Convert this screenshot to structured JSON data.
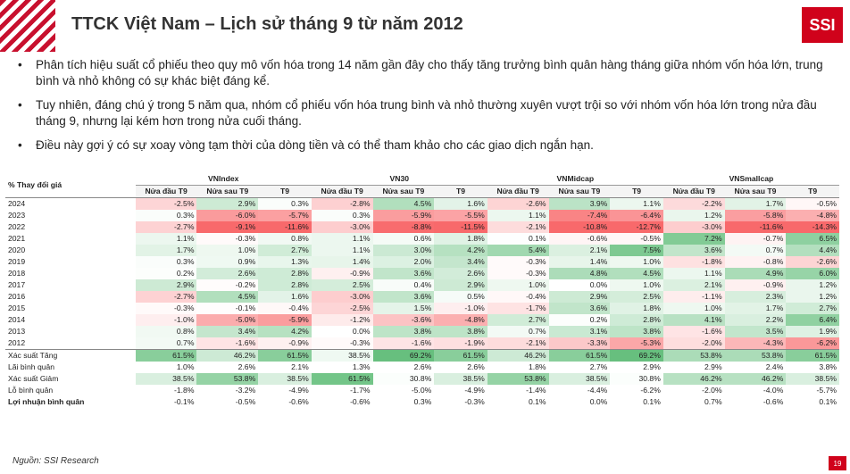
{
  "header": {
    "title": "TTCK Việt Nam – Lịch sử tháng 9 từ năm 2012",
    "logo": "SSI"
  },
  "bullets": [
    "Phân tích hiệu suất cổ phiếu theo quy mô vốn hóa trong 14 năm gần đây cho thấy tăng trưởng bình quân hàng tháng giữa nhóm vốn hóa lớn, trung bình và nhỏ không có sự khác biệt đáng kể.",
    "Tuy nhiên,  đáng chú ý trong 5 năm qua, nhóm cổ phiếu vốn hóa trung bình và nhỏ thường xuyên vượt trội so với nhóm vốn hóa lớn trong nửa đầu tháng 9, nhưng lại kém hơn trong nửa cuối tháng.",
    "Điều này gợi ý có sự xoay vòng tạm thời của dòng tiền và có thể tham khảo cho các giao dịch ngắn hạn."
  ],
  "table": {
    "corner": "% Thay đổi giá",
    "groups": [
      "VNIndex",
      "VN30",
      "VNMidcap",
      "VNSmallcap"
    ],
    "subcols": [
      "Nửa đầu T9",
      "Nửa sau T9",
      "T9"
    ],
    "rows": [
      {
        "label": "2024",
        "v": [
          "-2.5%",
          "2.9%",
          "0.3%",
          "-2.8%",
          "4.5%",
          "1.6%",
          "-2.6%",
          "3.9%",
          "1.1%",
          "-2.2%",
          "1.7%",
          "-0.5%"
        ]
      },
      {
        "label": "2023",
        "v": [
          "0.3%",
          "-6.0%",
          "-5.7%",
          "0.3%",
          "-5.9%",
          "-5.5%",
          "1.1%",
          "-7.4%",
          "-6.4%",
          "1.2%",
          "-5.8%",
          "-4.8%"
        ]
      },
      {
        "label": "2022",
        "v": [
          "-2.7%",
          "-9.1%",
          "-11.6%",
          "-3.0%",
          "-8.8%",
          "-11.5%",
          "-2.1%",
          "-10.8%",
          "-12.7%",
          "-3.0%",
          "-11.6%",
          "-14.3%"
        ]
      },
      {
        "label": "2021",
        "v": [
          "1.1%",
          "-0.3%",
          "0.8%",
          "1.1%",
          "0.6%",
          "1.8%",
          "0.1%",
          "-0.6%",
          "-0.5%",
          "7.2%",
          "-0.7%",
          "6.5%"
        ]
      },
      {
        "label": "2020",
        "v": [
          "1.7%",
          "1.0%",
          "2.7%",
          "1.1%",
          "3.0%",
          "4.2%",
          "5.4%",
          "2.1%",
          "7.5%",
          "3.6%",
          "0.7%",
          "4.4%"
        ]
      },
      {
        "label": "2019",
        "v": [
          "0.3%",
          "0.9%",
          "1.3%",
          "1.4%",
          "2.0%",
          "3.4%",
          "-0.3%",
          "1.4%",
          "1.0%",
          "-1.8%",
          "-0.8%",
          "-2.6%"
        ]
      },
      {
        "label": "2018",
        "v": [
          "0.2%",
          "2.6%",
          "2.8%",
          "-0.9%",
          "3.6%",
          "2.6%",
          "-0.3%",
          "4.8%",
          "4.5%",
          "1.1%",
          "4.9%",
          "6.0%"
        ]
      },
      {
        "label": "2017",
        "v": [
          "2.9%",
          "-0.2%",
          "2.8%",
          "2.5%",
          "0.4%",
          "2.9%",
          "1.0%",
          "0.0%",
          "1.0%",
          "2.1%",
          "-0.9%",
          "1.2%"
        ]
      },
      {
        "label": "2016",
        "v": [
          "-2.7%",
          "4.5%",
          "1.6%",
          "-3.0%",
          "3.6%",
          "0.5%",
          "-0.4%",
          "2.9%",
          "2.5%",
          "-1.1%",
          "2.3%",
          "1.2%"
        ]
      },
      {
        "label": "2015",
        "v": [
          "-0.3%",
          "-0.1%",
          "-0.4%",
          "-2.5%",
          "1.5%",
          "-1.0%",
          "-1.7%",
          "3.6%",
          "1.8%",
          "1.0%",
          "1.7%",
          "2.7%"
        ]
      },
      {
        "label": "2014",
        "v": [
          "-1.0%",
          "-5.0%",
          "-5.9%",
          "-1.2%",
          "-3.6%",
          "-4.8%",
          "2.7%",
          "0.2%",
          "2.8%",
          "4.1%",
          "2.2%",
          "6.4%"
        ]
      },
      {
        "label": "2013",
        "v": [
          "0.8%",
          "3.4%",
          "4.2%",
          "0.0%",
          "3.8%",
          "3.8%",
          "0.7%",
          "3.1%",
          "3.8%",
          "-1.6%",
          "3.5%",
          "1.9%"
        ]
      },
      {
        "label": "2012",
        "v": [
          "0.7%",
          "-1.6%",
          "-0.9%",
          "-0.3%",
          "-1.6%",
          "-1.9%",
          "-2.1%",
          "-3.3%",
          "-5.3%",
          "-2.0%",
          "-4.3%",
          "-6.2%"
        ]
      }
    ],
    "stats": [
      {
        "label": "Xác suất Tăng",
        "kind": "up",
        "v": [
          "61.5%",
          "46.2%",
          "61.5%",
          "38.5%",
          "69.2%",
          "61.5%",
          "46.2%",
          "61.5%",
          "69.2%",
          "53.8%",
          "53.8%",
          "61.5%"
        ]
      },
      {
        "label": "Lãi bình quân",
        "kind": "none",
        "v": [
          "1.0%",
          "2.6%",
          "2.1%",
          "1.3%",
          "2.6%",
          "2.6%",
          "1.8%",
          "2.7%",
          "2.9%",
          "2.9%",
          "2.4%",
          "3.8%"
        ]
      },
      {
        "label": "Xác suất Giảm",
        "kind": "down",
        "v": [
          "38.5%",
          "53.8%",
          "38.5%",
          "61.5%",
          "30.8%",
          "38.5%",
          "53.8%",
          "38.5%",
          "30.8%",
          "46.2%",
          "46.2%",
          "38.5%"
        ]
      },
      {
        "label": "Lỗ bình quân",
        "kind": "none",
        "v": [
          "-1.8%",
          "-3.2%",
          "-4.9%",
          "-1.7%",
          "-5.0%",
          "-4.9%",
          "-1.4%",
          "-4.4%",
          "-6.2%",
          "-2.0%",
          "-4.0%",
          "-5.7%"
        ]
      },
      {
        "label": "Lợi nhuận bình quân",
        "kind": "none",
        "bold": true,
        "v": [
          "-0.1%",
          "-0.5%",
          "-0.6%",
          "-0.6%",
          "0.3%",
          "-0.3%",
          "0.1%",
          "0.0%",
          "0.1%",
          "0.7%",
          "-0.6%",
          "0.1%"
        ]
      }
    ]
  },
  "source": "Nguồn: SSI Research",
  "page_number": "19"
}
